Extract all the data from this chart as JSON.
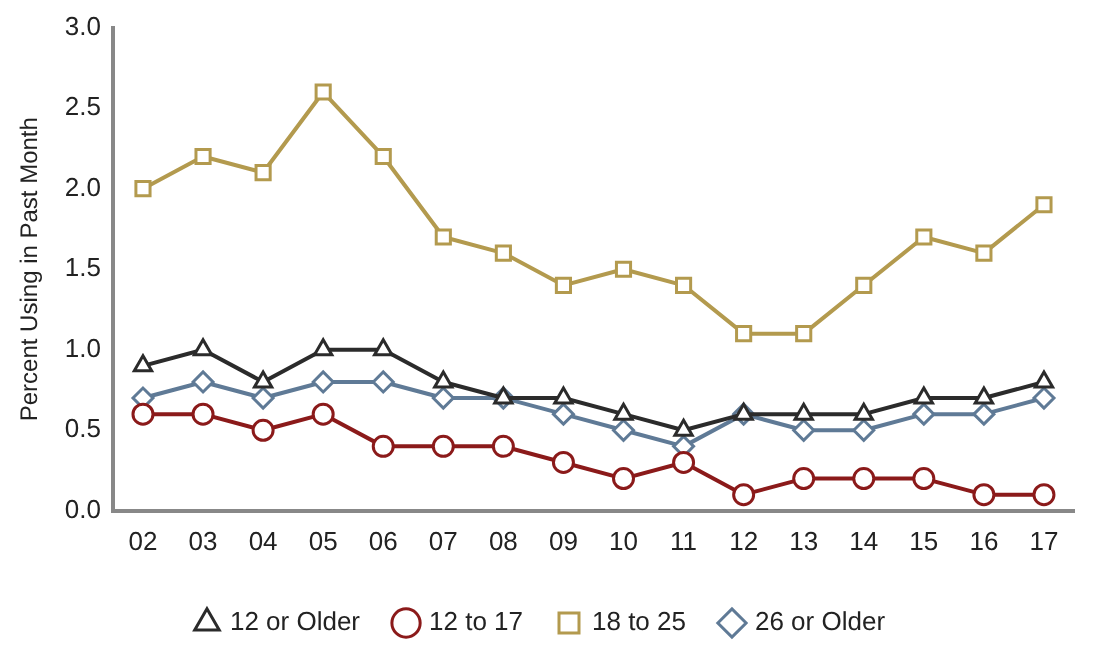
{
  "chart_data": {
    "type": "line",
    "ylabel": "Percent Using in Past Month",
    "categories": [
      "02",
      "03",
      "04",
      "05",
      "06",
      "07",
      "08",
      "09",
      "10",
      "11",
      "12",
      "13",
      "14",
      "15",
      "16",
      "17"
    ],
    "series": [
      {
        "name": "12 or Older",
        "color": "#2b2b2b",
        "marker": "triangle",
        "values": [
          0.9,
          1.0,
          0.8,
          1.0,
          1.0,
          0.8,
          0.7,
          0.7,
          0.6,
          0.5,
          0.6,
          0.6,
          0.6,
          0.7,
          0.7,
          0.8
        ]
      },
      {
        "name": "12 to 17",
        "color": "#8b1a1a",
        "marker": "circle",
        "values": [
          0.6,
          0.6,
          0.5,
          0.6,
          0.4,
          0.4,
          0.4,
          0.3,
          0.2,
          0.3,
          0.1,
          0.2,
          0.2,
          0.2,
          0.1,
          0.1
        ]
      },
      {
        "name": "18 to 25",
        "color": "#b39a4e",
        "marker": "square",
        "values": [
          2.0,
          2.2,
          2.1,
          2.6,
          2.2,
          1.7,
          1.6,
          1.4,
          1.5,
          1.4,
          1.1,
          1.1,
          1.4,
          1.7,
          1.6,
          1.9
        ]
      },
      {
        "name": "26 or Older",
        "color": "#5f7a96",
        "marker": "diamond",
        "values": [
          0.7,
          0.8,
          0.7,
          0.8,
          0.8,
          0.7,
          0.7,
          0.6,
          0.5,
          0.4,
          0.6,
          0.5,
          0.5,
          0.6,
          0.6,
          0.7
        ]
      }
    ],
    "ylim": [
      0,
      3.0
    ],
    "yticks": [
      {
        "value": 0,
        "label": "0.0"
      },
      {
        "value": 0.5,
        "label": "0.5"
      },
      {
        "value": 1,
        "label": "1.0"
      },
      {
        "value": 1.5,
        "label": "1.5"
      },
      {
        "value": 2,
        "label": "2.0"
      },
      {
        "value": 2.5,
        "label": "2.5"
      },
      {
        "value": 3,
        "label": "3.0"
      }
    ],
    "grid": false,
    "legend": "bottom",
    "line_style": "solid"
  }
}
